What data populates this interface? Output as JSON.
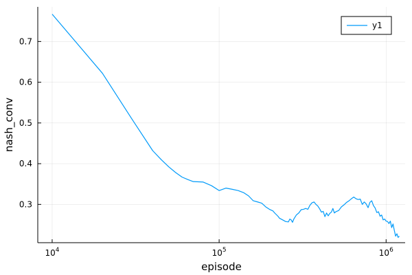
{
  "chart_data": {
    "type": "line",
    "title": "",
    "xlabel": "episode",
    "ylabel": "nash_conv",
    "xscale": "log",
    "xlim": [
      8200,
      1300000
    ],
    "ylim": [
      0.206,
      0.785
    ],
    "grid": true,
    "legend_position": "top-right",
    "x_ticks": [
      {
        "value": 10000,
        "base": "10",
        "exp": "4"
      },
      {
        "value": 100000,
        "base": "10",
        "exp": "5"
      },
      {
        "value": 1000000,
        "base": "10",
        "exp": "6"
      }
    ],
    "y_ticks": [
      0.3,
      0.4,
      0.5,
      0.6,
      0.7
    ],
    "y_tick_labels": [
      "0.3",
      "0.4",
      "0.5",
      "0.6",
      "0.7"
    ],
    "series": [
      {
        "name": "y1",
        "color": "#009af9",
        "points": [
          [
            10000,
            0.767
          ],
          [
            20000,
            0.622
          ],
          [
            30000,
            0.51
          ],
          [
            40000,
            0.432
          ],
          [
            45000,
            0.41
          ],
          [
            50000,
            0.392
          ],
          [
            55000,
            0.378
          ],
          [
            60000,
            0.367
          ],
          [
            65000,
            0.361
          ],
          [
            70000,
            0.356
          ],
          [
            80000,
            0.355
          ],
          [
            90000,
            0.346
          ],
          [
            100000,
            0.334
          ],
          [
            110000,
            0.34
          ],
          [
            120000,
            0.337
          ],
          [
            130000,
            0.334
          ],
          [
            140000,
            0.329
          ],
          [
            150000,
            0.321
          ],
          [
            160000,
            0.309
          ],
          [
            170000,
            0.306
          ],
          [
            180000,
            0.303
          ],
          [
            190000,
            0.294
          ],
          [
            200000,
            0.288
          ],
          [
            210000,
            0.284
          ],
          [
            215000,
            0.279
          ],
          [
            220000,
            0.275
          ],
          [
            225000,
            0.271
          ],
          [
            230000,
            0.266
          ],
          [
            240000,
            0.262
          ],
          [
            250000,
            0.258
          ],
          [
            260000,
            0.257
          ],
          [
            265000,
            0.264
          ],
          [
            270000,
            0.262
          ],
          [
            275000,
            0.256
          ],
          [
            280000,
            0.264
          ],
          [
            290000,
            0.274
          ],
          [
            300000,
            0.279
          ],
          [
            310000,
            0.287
          ],
          [
            320000,
            0.288
          ],
          [
            330000,
            0.29
          ],
          [
            340000,
            0.288
          ],
          [
            350000,
            0.298
          ],
          [
            360000,
            0.304
          ],
          [
            370000,
            0.306
          ],
          [
            380000,
            0.3
          ],
          [
            390000,
            0.296
          ],
          [
            400000,
            0.289
          ],
          [
            410000,
            0.281
          ],
          [
            420000,
            0.283
          ],
          [
            430000,
            0.27
          ],
          [
            440000,
            0.279
          ],
          [
            450000,
            0.272
          ],
          [
            460000,
            0.278
          ],
          [
            470000,
            0.281
          ],
          [
            480000,
            0.29
          ],
          [
            490000,
            0.279
          ],
          [
            500000,
            0.282
          ],
          [
            520000,
            0.285
          ],
          [
            540000,
            0.294
          ],
          [
            560000,
            0.299
          ],
          [
            580000,
            0.305
          ],
          [
            600000,
            0.309
          ],
          [
            620000,
            0.314
          ],
          [
            640000,
            0.318
          ],
          [
            660000,
            0.314
          ],
          [
            680000,
            0.312
          ],
          [
            700000,
            0.313
          ],
          [
            720000,
            0.3
          ],
          [
            740000,
            0.306
          ],
          [
            760000,
            0.301
          ],
          [
            780000,
            0.292
          ],
          [
            800000,
            0.305
          ],
          [
            820000,
            0.309
          ],
          [
            840000,
            0.297
          ],
          [
            860000,
            0.291
          ],
          [
            880000,
            0.28
          ],
          [
            900000,
            0.282
          ],
          [
            920000,
            0.271
          ],
          [
            940000,
            0.274
          ],
          [
            960000,
            0.262
          ],
          [
            980000,
            0.264
          ],
          [
            1000000,
            0.259
          ],
          [
            1020000,
            0.258
          ],
          [
            1040000,
            0.253
          ],
          [
            1060000,
            0.259
          ],
          [
            1080000,
            0.243
          ],
          [
            1100000,
            0.252
          ],
          [
            1120000,
            0.236
          ],
          [
            1140000,
            0.222
          ],
          [
            1160000,
            0.228
          ],
          [
            1180000,
            0.219
          ],
          [
            1200000,
            0.222
          ]
        ]
      }
    ]
  }
}
